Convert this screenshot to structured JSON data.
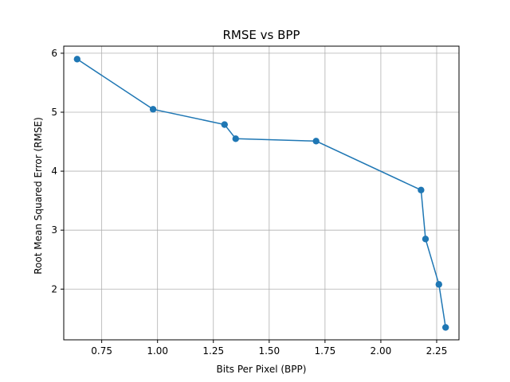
{
  "chart_data": {
    "type": "line",
    "title": "RMSE vs BPP",
    "xlabel": "Bits Per Pixel (BPP)",
    "ylabel": "Root Mean Squared Error (RMSE)",
    "xlim": [
      0.58,
      2.35
    ],
    "ylim": [
      1.14,
      6.12
    ],
    "xticks": [
      0.75,
      1.0,
      1.25,
      1.5,
      1.75,
      2.0,
      2.25
    ],
    "xtick_labels": [
      "0.75",
      "1.00",
      "1.25",
      "1.50",
      "1.75",
      "2.00",
      "2.25"
    ],
    "yticks": [
      2,
      3,
      4,
      5,
      6
    ],
    "ytick_labels": [
      "2",
      "3",
      "4",
      "5",
      "6"
    ],
    "grid": true,
    "series": [
      {
        "color": "#1f77b4",
        "marker": "circle",
        "points": [
          {
            "x": 0.64,
            "y": 5.9
          },
          {
            "x": 0.98,
            "y": 5.05
          },
          {
            "x": 1.3,
            "y": 4.79
          },
          {
            "x": 1.35,
            "y": 4.55
          },
          {
            "x": 1.71,
            "y": 4.51
          },
          {
            "x": 2.18,
            "y": 3.68
          },
          {
            "x": 2.2,
            "y": 2.85
          },
          {
            "x": 2.26,
            "y": 2.08
          },
          {
            "x": 2.29,
            "y": 1.35
          }
        ]
      }
    ]
  }
}
